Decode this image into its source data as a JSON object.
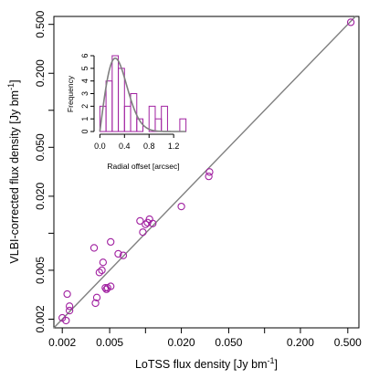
{
  "chart_data": [
    {
      "type": "scatter",
      "xlabel": "LoTSS flux density [Jy bm",
      "ylabel": "VLBI-corrected flux density [Jy bm",
      "unit_superscript": "-1",
      "unit_suffix": "]",
      "x_scale": "log",
      "y_scale": "log",
      "xlim": [
        0.0017,
        0.62
      ],
      "ylim": [
        0.0017,
        0.58
      ],
      "x_ticks": [
        0.002,
        0.005,
        0.02,
        0.05,
        0.2,
        0.5
      ],
      "x_tick_labels": [
        "0.002",
        "0.005",
        "0.020",
        "0.050",
        "0.200",
        "0.500"
      ],
      "y_ticks": [
        0.002,
        0.005,
        0.02,
        0.05,
        0.2,
        0.5
      ],
      "y_tick_labels": [
        "0.002",
        "0.005",
        "0.020",
        "0.050",
        "0.200",
        "0.500"
      ],
      "minor_ticks": [
        0.01,
        0.1
      ],
      "marker_color": "#a020a0",
      "line_color": "#7f7f7f",
      "reference_line": "y = x",
      "points": [
        {
          "x": 0.002,
          "y": 0.00205
        },
        {
          "x": 0.00215,
          "y": 0.00195
        },
        {
          "x": 0.0022,
          "y": 0.0032
        },
        {
          "x": 0.0023,
          "y": 0.00255
        },
        {
          "x": 0.0023,
          "y": 0.00235
        },
        {
          "x": 0.0037,
          "y": 0.0076
        },
        {
          "x": 0.0038,
          "y": 0.0027
        },
        {
          "x": 0.0039,
          "y": 0.003
        },
        {
          "x": 0.0041,
          "y": 0.0048
        },
        {
          "x": 0.0043,
          "y": 0.005
        },
        {
          "x": 0.0044,
          "y": 0.0058
        },
        {
          "x": 0.0046,
          "y": 0.0036
        },
        {
          "x": 0.0047,
          "y": 0.0035
        },
        {
          "x": 0.0048,
          "y": 0.0036
        },
        {
          "x": 0.0051,
          "y": 0.0037
        },
        {
          "x": 0.0051,
          "y": 0.0085
        },
        {
          "x": 0.0059,
          "y": 0.0068
        },
        {
          "x": 0.0065,
          "y": 0.0066
        },
        {
          "x": 0.009,
          "y": 0.0126
        },
        {
          "x": 0.0095,
          "y": 0.0102
        },
        {
          "x": 0.01,
          "y": 0.0118
        },
        {
          "x": 0.0104,
          "y": 0.0122
        },
        {
          "x": 0.0108,
          "y": 0.013
        },
        {
          "x": 0.0115,
          "y": 0.012
        },
        {
          "x": 0.02,
          "y": 0.0165
        },
        {
          "x": 0.034,
          "y": 0.029
        },
        {
          "x": 0.0345,
          "y": 0.0315
        },
        {
          "x": 0.53,
          "y": 0.52
        }
      ]
    },
    {
      "type": "histogram",
      "xlabel": "Radial offset [arcsec]",
      "ylabel": "Frequency",
      "xlim": [
        -0.05,
        1.45
      ],
      "ylim": [
        0,
        6
      ],
      "x_ticks": [
        0.0,
        0.4,
        0.8,
        1.2
      ],
      "x_tick_labels": [
        "0.0",
        "0.4",
        "0.8",
        "1.2"
      ],
      "y_ticks": [
        0,
        1,
        2,
        3,
        4,
        5,
        6
      ],
      "y_tick_labels": [
        "0",
        "1",
        "2",
        "3",
        "4",
        "5",
        "6"
      ],
      "bin_width": 0.1,
      "bins": [
        {
          "start": 0.0,
          "count": 2
        },
        {
          "start": 0.1,
          "count": 4
        },
        {
          "start": 0.2,
          "count": 6
        },
        {
          "start": 0.3,
          "count": 5
        },
        {
          "start": 0.4,
          "count": 2
        },
        {
          "start": 0.5,
          "count": 3
        },
        {
          "start": 0.6,
          "count": 1
        },
        {
          "start": 0.7,
          "count": 0
        },
        {
          "start": 0.8,
          "count": 2
        },
        {
          "start": 0.9,
          "count": 1
        },
        {
          "start": 1.0,
          "count": 2
        },
        {
          "start": 1.1,
          "count": 0
        },
        {
          "start": 1.2,
          "count": 0
        },
        {
          "start": 1.3,
          "count": 1
        }
      ],
      "bar_color": "#a020a0",
      "curve_color": "#7f7f7f",
      "curve": "Rayleigh fit, sigma 0.25 arcsec",
      "curve_sigma": 0.25,
      "curve_peak": 5.8
    }
  ]
}
